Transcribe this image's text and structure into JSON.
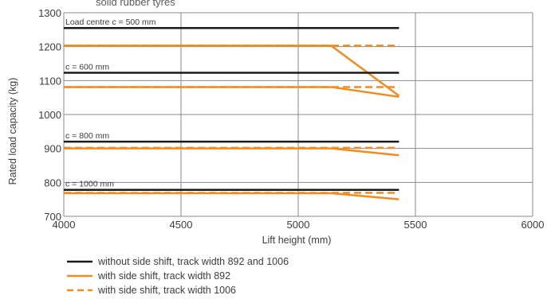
{
  "chart_data": {
    "type": "line",
    "title": "solid rubber tyres",
    "xlabel": "Lift height (mm)",
    "ylabel": "Rated load capacity (kg)",
    "xlim": [
      4000,
      6000
    ],
    "ylim": [
      700,
      1300
    ],
    "xticks": [
      4000,
      4500,
      5000,
      5500,
      6000
    ],
    "yticks": [
      700,
      800,
      900,
      1000,
      1100,
      1200,
      1300
    ],
    "grid": true,
    "legend_position": "bottom-left",
    "colors": {
      "black": "#1a1a1a",
      "orange": "#f28c1e"
    },
    "legend": [
      {
        "label": "without side shift, track width 892 and 1006",
        "color": "#1a1a1a",
        "style": "solid"
      },
      {
        "label": "with side shift, track width 892",
        "color": "#f28c1e",
        "style": "solid"
      },
      {
        "label": "with side shift, track width 1006",
        "color": "#f28c1e",
        "style": "dashed"
      }
    ],
    "groups": [
      {
        "annotation": "Load centre c = 500 mm",
        "series": [
          {
            "name": "without side shift, track width 892 and 1006",
            "color": "#1a1a1a",
            "style": "solid",
            "points": [
              [
                4000,
                1255
              ],
              [
                5430,
                1255
              ]
            ]
          },
          {
            "name": "with side shift, track width 892",
            "color": "#f28c1e",
            "style": "solid",
            "points": [
              [
                4000,
                1203
              ],
              [
                5140,
                1203
              ],
              [
                5430,
                1055
              ]
            ]
          },
          {
            "name": "with side shift, track width 1006",
            "color": "#f28c1e",
            "style": "dashed",
            "points": [
              [
                4000,
                1203
              ],
              [
                5430,
                1203
              ]
            ]
          }
        ]
      },
      {
        "annotation": "c = 600 mm",
        "series": [
          {
            "name": "without side shift, track width 892 and 1006",
            "color": "#1a1a1a",
            "style": "solid",
            "points": [
              [
                4000,
                1123
              ],
              [
                5430,
                1123
              ]
            ]
          },
          {
            "name": "with side shift, track width 892",
            "color": "#f28c1e",
            "style": "solid",
            "points": [
              [
                4000,
                1081
              ],
              [
                5140,
                1081
              ],
              [
                5430,
                1052
              ]
            ]
          },
          {
            "name": "with side shift, track width 1006",
            "color": "#f28c1e",
            "style": "dashed",
            "points": [
              [
                4000,
                1081
              ],
              [
                5430,
                1081
              ]
            ]
          }
        ]
      },
      {
        "annotation": "c = 800 mm",
        "series": [
          {
            "name": "without side shift, track width 892 and 1006",
            "color": "#1a1a1a",
            "style": "solid",
            "points": [
              [
                4000,
                920
              ],
              [
                5430,
                920
              ]
            ]
          },
          {
            "name": "with side shift, track width 892",
            "color": "#f28c1e",
            "style": "solid",
            "points": [
              [
                4000,
                900
              ],
              [
                5140,
                900
              ],
              [
                5430,
                880
              ]
            ]
          },
          {
            "name": "with side shift, track width 1006",
            "color": "#f28c1e",
            "style": "dashed",
            "points": [
              [
                4000,
                902
              ],
              [
                5430,
                902
              ]
            ]
          }
        ]
      },
      {
        "annotation": "c = 1000 mm",
        "series": [
          {
            "name": "without side shift, track width 892 and 1006",
            "color": "#1a1a1a",
            "style": "solid",
            "points": [
              [
                4000,
                778
              ],
              [
                5430,
                778
              ]
            ]
          },
          {
            "name": "with side shift, track width 892",
            "color": "#f28c1e",
            "style": "solid",
            "points": [
              [
                4000,
                768
              ],
              [
                5140,
                768
              ],
              [
                5430,
                750
              ]
            ]
          },
          {
            "name": "with side shift, track width 1006",
            "color": "#f28c1e",
            "style": "dashed",
            "points": [
              [
                4000,
                769
              ],
              [
                5430,
                769
              ]
            ]
          }
        ]
      }
    ]
  }
}
